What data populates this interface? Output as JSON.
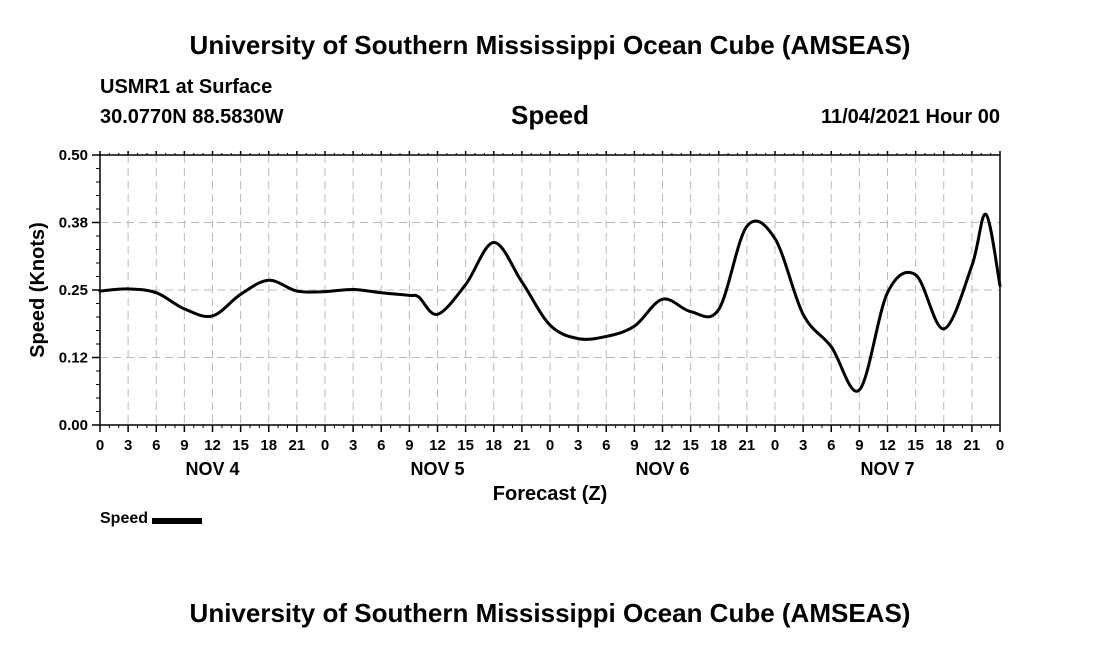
{
  "header": {
    "title": "University of Southern Mississippi Ocean Cube (AMSEAS)",
    "station": "USMR1 at Surface",
    "coords": "30.0770N  88.5830W",
    "date_hour": "11/04/2021 Hour 00"
  },
  "footer": {
    "title": "University of Southern Mississippi Ocean Cube (AMSEAS)"
  },
  "legend": {
    "label": "Speed"
  },
  "colors": {
    "line": "#000000",
    "grid": "#bbbbbb"
  },
  "chart_data": {
    "type": "line",
    "title": "Speed",
    "xlabel": "Forecast (Z)",
    "ylabel": "Speed (Knots)",
    "xlim": [
      0,
      96
    ],
    "ylim": [
      0,
      0.5
    ],
    "y_ticks": [
      0.0,
      0.125,
      0.25,
      0.375,
      0.5
    ],
    "y_tick_labels": [
      "0.00",
      "0.12",
      "0.25",
      "0.38",
      "0.50"
    ],
    "x_ticks": [
      0,
      3,
      6,
      9,
      12,
      15,
      18,
      21,
      24,
      27,
      30,
      33,
      36,
      39,
      42,
      45,
      48,
      51,
      54,
      57,
      60,
      63,
      66,
      69,
      72,
      75,
      78,
      81,
      84,
      87,
      90,
      93,
      96
    ],
    "x_tick_labels": [
      "0",
      "3",
      "6",
      "9",
      "12",
      "15",
      "18",
      "21",
      "0",
      "3",
      "6",
      "9",
      "12",
      "15",
      "18",
      "21",
      "0",
      "3",
      "6",
      "9",
      "12",
      "15",
      "18",
      "21",
      "0",
      "3",
      "6",
      "9",
      "12",
      "15",
      "18",
      "21",
      "0"
    ],
    "day_labels": [
      {
        "label": "NOV 4",
        "x": 12
      },
      {
        "label": "NOV 5",
        "x": 36
      },
      {
        "label": "NOV 6",
        "x": 60
      },
      {
        "label": "NOV 7",
        "x": 84
      }
    ],
    "grid": true,
    "series": [
      {
        "name": "Speed",
        "x": [
          0,
          3,
          6,
          9,
          12,
          15,
          18,
          21,
          24,
          27,
          30,
          33,
          34,
          36,
          39,
          42,
          45,
          48,
          51,
          54,
          57,
          60,
          63,
          66,
          69,
          72,
          75,
          78,
          81,
          84,
          87,
          90,
          93,
          94.5,
          96
        ],
        "values": [
          0.248,
          0.252,
          0.245,
          0.215,
          0.202,
          0.242,
          0.268,
          0.248,
          0.247,
          0.251,
          0.245,
          0.24,
          0.237,
          0.205,
          0.26,
          0.338,
          0.265,
          0.185,
          0.16,
          0.164,
          0.183,
          0.233,
          0.21,
          0.214,
          0.368,
          0.345,
          0.205,
          0.145,
          0.065,
          0.245,
          0.278,
          0.178,
          0.295,
          0.39,
          0.258
        ]
      }
    ]
  }
}
